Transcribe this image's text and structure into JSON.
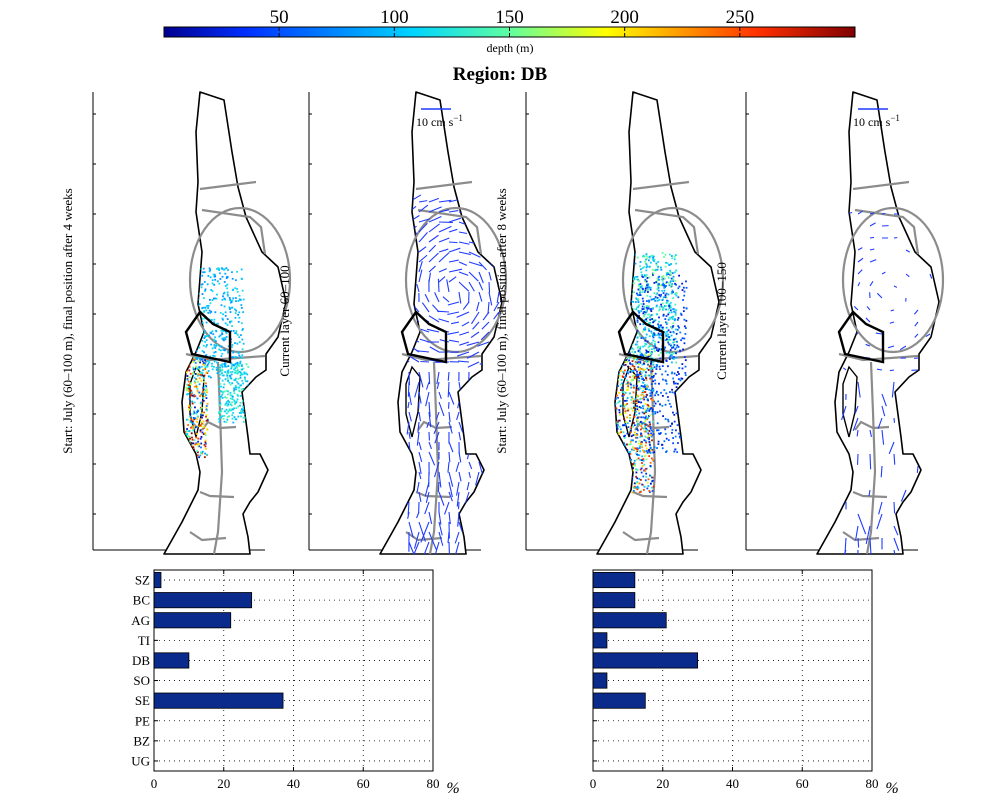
{
  "figure": {
    "title": "Region: DB",
    "colorbar": {
      "label": "depth (m)",
      "ticks": [
        "50",
        "100",
        "150",
        "200",
        "250"
      ],
      "range": [
        0,
        300
      ]
    }
  },
  "maps": [
    {
      "ylabel": "Start: July (60–100 m), final position after 4 weeks"
    },
    {
      "ylabel": "Current layer 60–100",
      "scale_label": "10 cm s",
      "scale_exp": "−1"
    },
    {
      "ylabel": "Start: July (60–100 m), final position after 8 weeks"
    },
    {
      "ylabel": "Current layer 100–150",
      "scale_label": "10 cm s",
      "scale_exp": "−1"
    }
  ],
  "chart_data": [
    {
      "type": "bar",
      "orientation": "horizontal",
      "categories": [
        "SZ",
        "BC",
        "AG",
        "TI",
        "DB",
        "SO",
        "SE",
        "PE",
        "BZ",
        "UG"
      ],
      "values": [
        2,
        28,
        22,
        0,
        10,
        0,
        37,
        0,
        0,
        0
      ],
      "xlim": [
        0,
        80
      ],
      "xticks": [
        "0",
        "20",
        "40",
        "60",
        "80"
      ],
      "xlabel": "%",
      "grid": true,
      "color": "#0a2a8c"
    },
    {
      "type": "bar",
      "orientation": "horizontal",
      "categories": [
        "SZ",
        "BC",
        "AG",
        "TI",
        "DB",
        "SO",
        "SE",
        "PE",
        "BZ",
        "UG"
      ],
      "values": [
        12,
        12,
        21,
        4,
        30,
        4,
        15,
        0,
        0,
        0
      ],
      "xlim": [
        0,
        80
      ],
      "xticks": [
        "0",
        "20",
        "40",
        "60",
        "80"
      ],
      "xlabel": "%",
      "grid": true,
      "color": "#0a2a8c"
    }
  ]
}
